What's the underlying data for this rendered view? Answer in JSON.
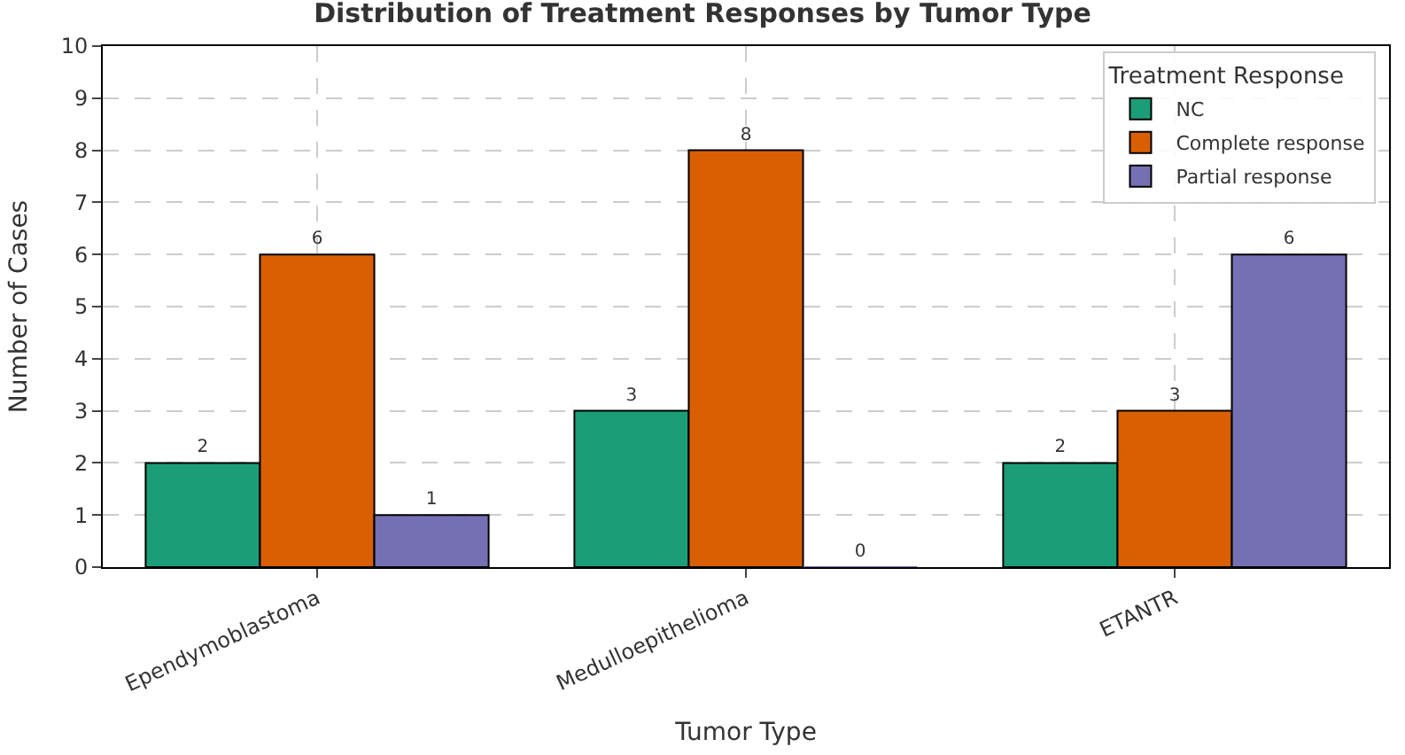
{
  "chart_data": {
    "type": "bar",
    "title": "Distribution of Treatment Responses by Tumor Type",
    "xlabel": "Tumor Type",
    "ylabel": "Number of Cases",
    "legend_title": "Treatment Response",
    "categories": [
      "Ependymoblastoma",
      "Medulloepithelioma",
      "ETANTR"
    ],
    "series": [
      {
        "name": "NC",
        "color": "#1b9e77",
        "values": [
          2,
          3,
          2
        ]
      },
      {
        "name": "Complete response",
        "color": "#d95f02",
        "values": [
          6,
          8,
          3
        ]
      },
      {
        "name": "Partial response",
        "color": "#7570b3",
        "values": [
          1,
          0,
          6
        ]
      }
    ],
    "ylim": [
      0,
      10
    ],
    "yticks": [
      0,
      1,
      2,
      3,
      4,
      5,
      6,
      7,
      8,
      9,
      10
    ],
    "grid": true,
    "legend": "top right",
    "data_labels": true
  }
}
